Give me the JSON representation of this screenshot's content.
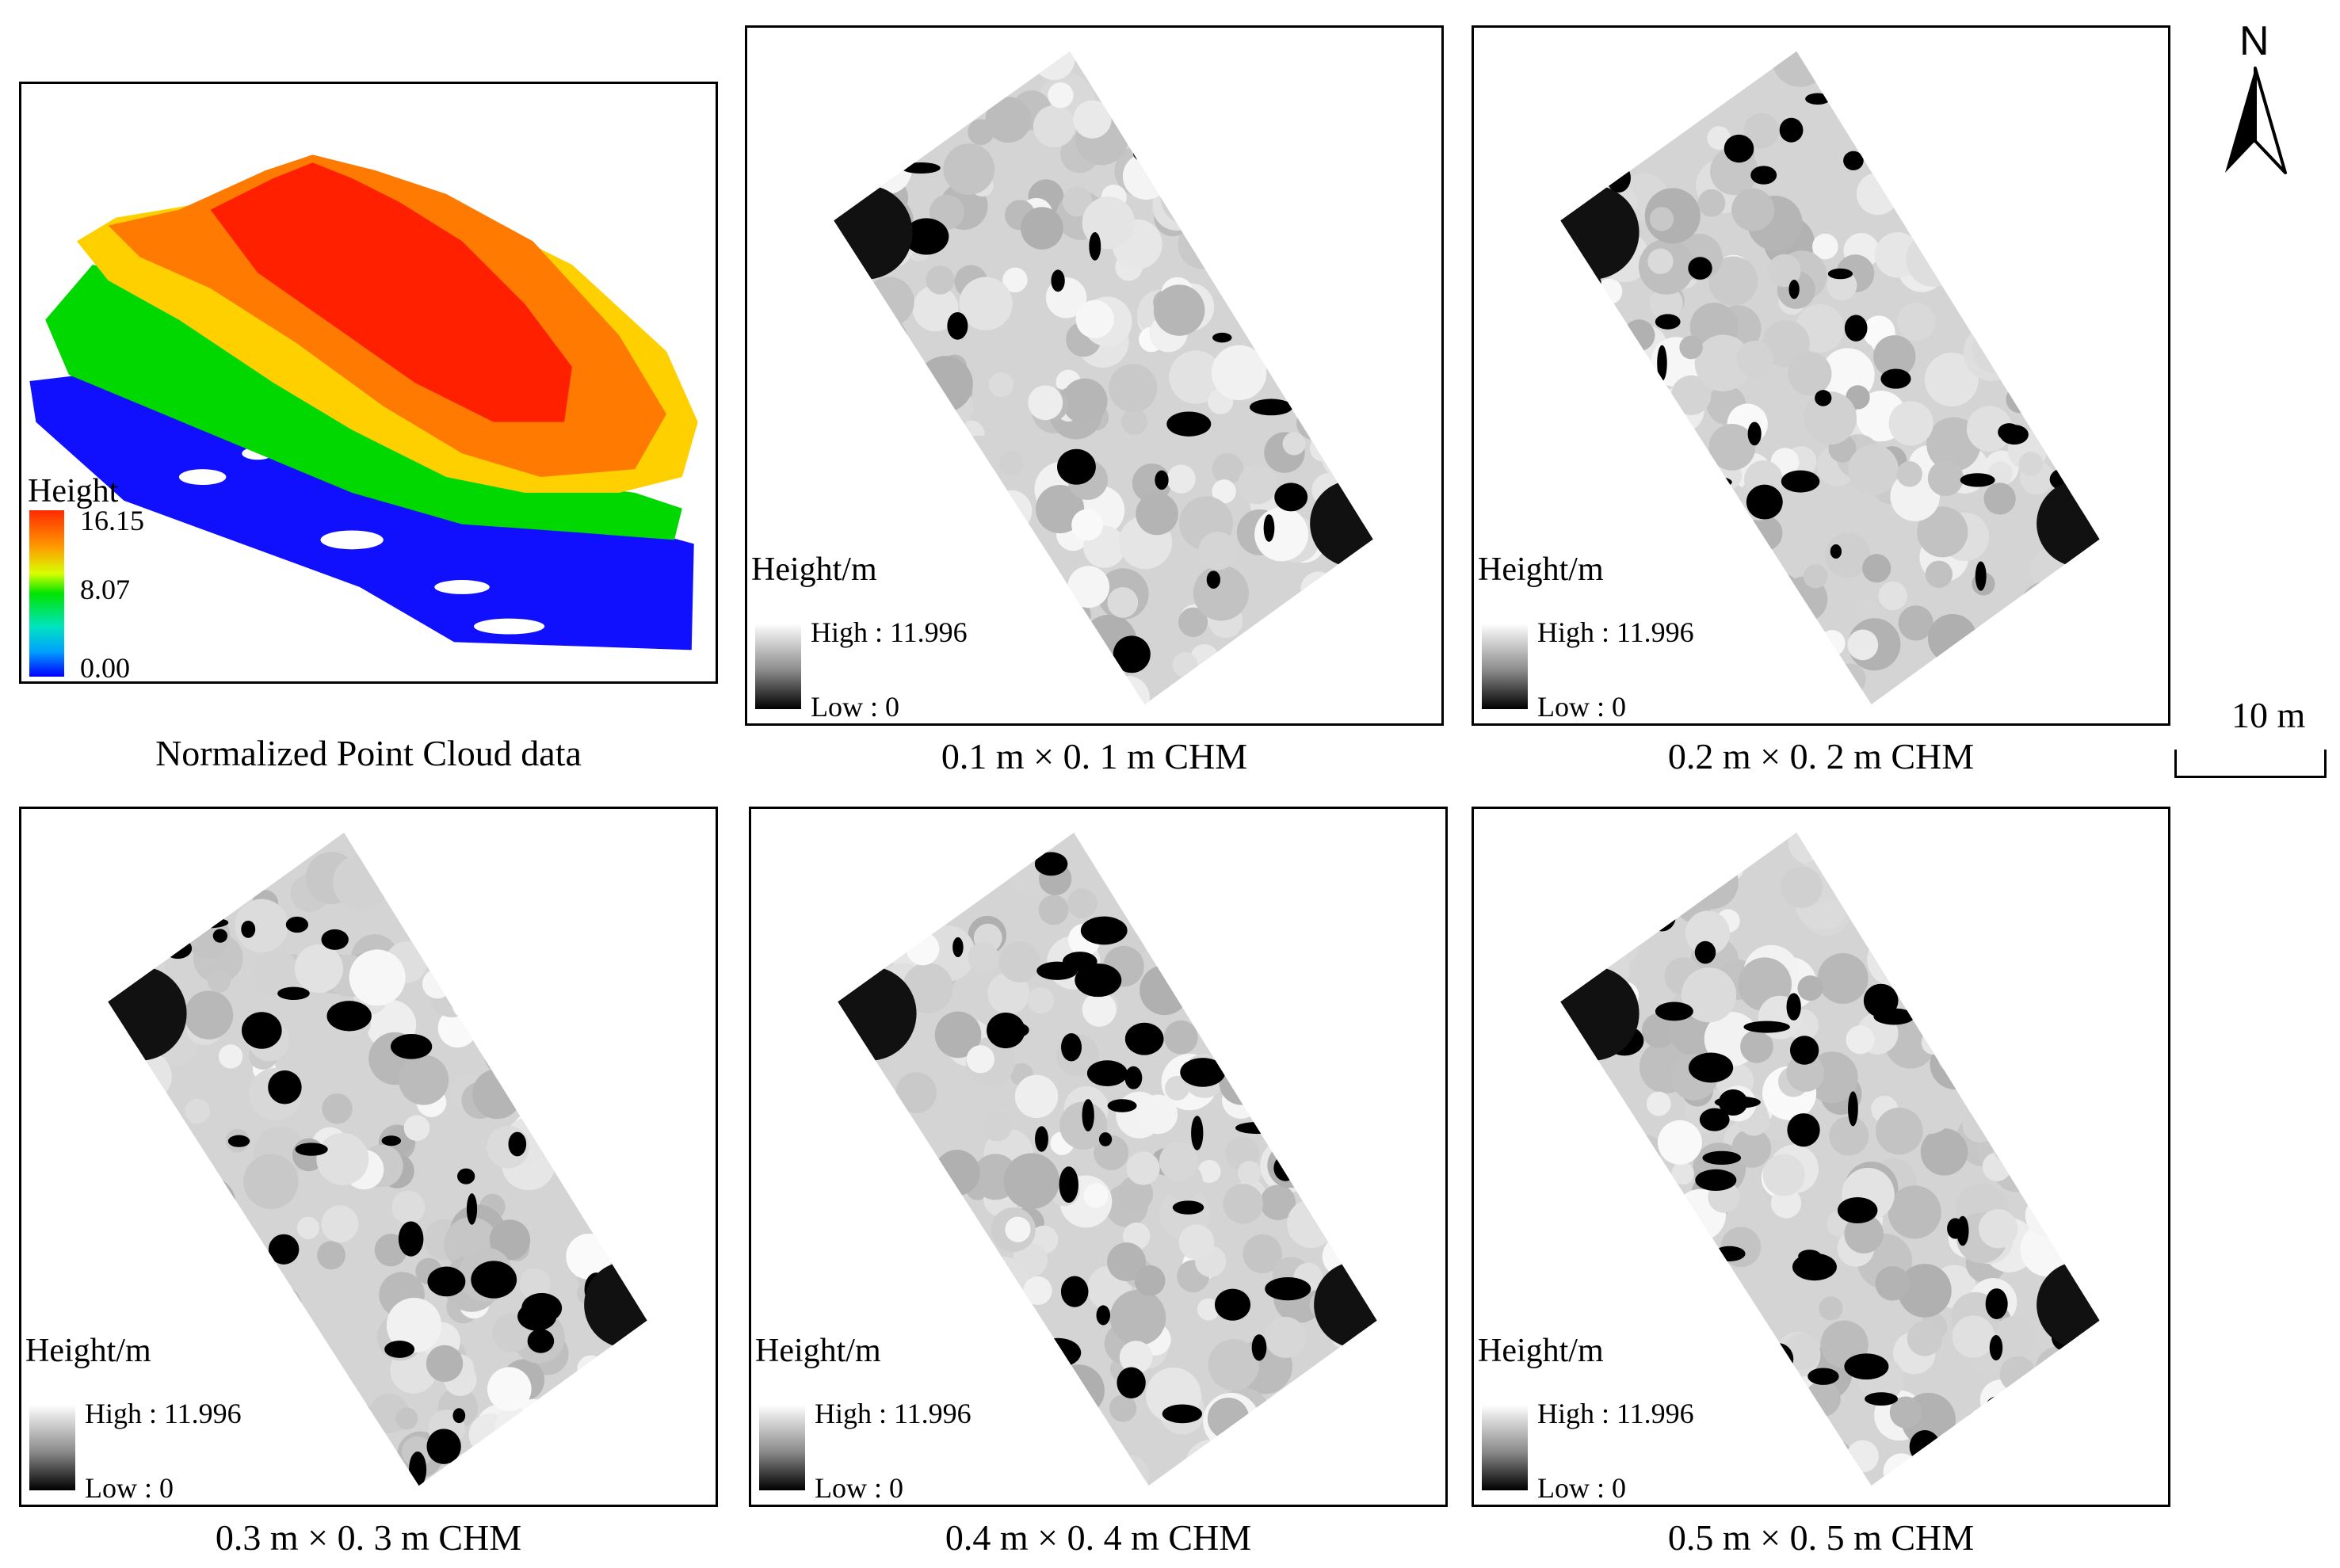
{
  "point_cloud": {
    "caption": "Normalized Point Cloud data",
    "legend_title": "Height",
    "legend_max": "16.15",
    "legend_mid": "8.07",
    "legend_min": "0.00",
    "colors": {
      "ground": "#1010ff",
      "low": "#00d800",
      "mid": "#ffd000",
      "high": "#ff7a00",
      "top": "#ff2000"
    }
  },
  "chm_panels": [
    {
      "caption": "0.1 m × 0. 1 m CHM",
      "legend_title": "Height/m",
      "high_label": "High : 11.996",
      "low_label": "Low : 0"
    },
    {
      "caption": "0.2 m × 0. 2 m CHM",
      "legend_title": "Height/m",
      "high_label": "High : 11.996",
      "low_label": "Low : 0"
    },
    {
      "caption": "0.3 m × 0. 3 m CHM",
      "legend_title": "Height/m",
      "high_label": "High : 11.996",
      "low_label": "Low : 0"
    },
    {
      "caption": "0.4 m × 0. 4 m CHM",
      "legend_title": "Height/m",
      "high_label": "High : 11.996",
      "low_label": "Low : 0"
    },
    {
      "caption": "0.5 m × 0. 5 m CHM",
      "legend_title": "Height/m",
      "high_label": "High : 11.996",
      "low_label": "Low : 0"
    }
  ],
  "north_arrow": {
    "label": "N"
  },
  "scale_bar": {
    "label": "10 m"
  }
}
